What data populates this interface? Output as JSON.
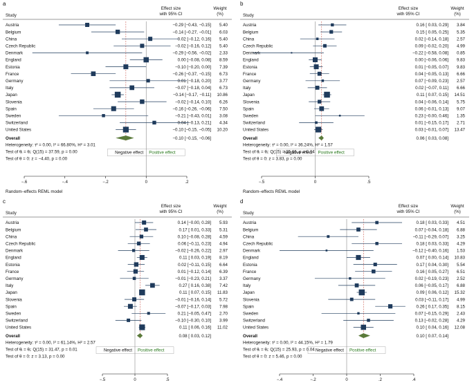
{
  "colors": {
    "marker": "#1f3b5c",
    "overall": "#5a7a3a",
    "positive_text": "#2a7a1e",
    "ci_line": "#1f3b5c"
  },
  "chart_data": [
    {
      "type": "forest",
      "panel_label": "a",
      "header": {
        "study": "Study",
        "effect_l1": "Effect size",
        "effect_l2": "with 95% CI",
        "weight_l1": "Weight",
        "weight_l2": "(%)"
      },
      "studies": [
        {
          "name": "Austria",
          "es": -0.29,
          "lo": -0.43,
          "hi": -0.15,
          "ci_text": "−0.29 [−0.43, −0.15]",
          "weight": "5.40"
        },
        {
          "name": "Belgium",
          "es": -0.14,
          "lo": -0.27,
          "hi": -0.01,
          "ci_text": "−0.14 [−0.27, −0.01]",
          "weight": "6.03"
        },
        {
          "name": "China",
          "es": 0.02,
          "lo": -0.12,
          "hi": 0.16,
          "ci_text": "0.02 [−0.12, 0.16]",
          "weight": "5.40"
        },
        {
          "name": "Czech Republic",
          "es": -0.02,
          "lo": -0.16,
          "hi": 0.12,
          "ci_text": "−0.02 [−0.16, 0.12]",
          "weight": "5.40"
        },
        {
          "name": "Denmark",
          "es": -0.29,
          "lo": -0.56,
          "hi": -0.02,
          "ci_text": "−0.29 [−0.56, −0.02]",
          "weight": "2.33"
        },
        {
          "name": "England",
          "es": 0.0,
          "lo": -0.08,
          "hi": 0.08,
          "ci_text": "0.00 [−0.08, 0.08]",
          "weight": "8.59"
        },
        {
          "name": "Estonia",
          "es": -0.1,
          "lo": -0.2,
          "hi": 0.0,
          "ci_text": "−0.10 [−0.20, 0.00]",
          "weight": "7.39"
        },
        {
          "name": "France",
          "es": -0.26,
          "lo": -0.37,
          "hi": -0.15,
          "ci_text": "−0.26 [−0.37, −0.15]",
          "weight": "6.73"
        },
        {
          "name": "Germany",
          "es": 0.01,
          "lo": -0.18,
          "hi": 0.2,
          "ci_text": "0.01 [−0.18, 0.20]",
          "weight": "3.77"
        },
        {
          "name": "Italy",
          "es": -0.07,
          "lo": -0.18,
          "hi": 0.04,
          "ci_text": "−0.07 [−0.18, 0.04]",
          "weight": "6.73"
        },
        {
          "name": "Japan",
          "es": -0.14,
          "lo": -0.17,
          "hi": -0.11,
          "ci_text": "−0.14 [−0.17, −0.11]",
          "weight": "10.86"
        },
        {
          "name": "Slovenia",
          "es": -0.02,
          "lo": -0.14,
          "hi": 0.1,
          "ci_text": "−0.02 [−0.14, 0.10]",
          "weight": "6.26"
        },
        {
          "name": "Spain",
          "es": -0.16,
          "lo": -0.26,
          "hi": -0.06,
          "ci_text": "−0.16 [−0.26, −0.06]",
          "weight": "7.50"
        },
        {
          "name": "Sweden",
          "es": -0.21,
          "lo": -0.43,
          "hi": 0.01,
          "ci_text": "−0.21 [−0.43, 0.01]",
          "weight": "3.08"
        },
        {
          "name": "Switzerland",
          "es": 0.04,
          "lo": -0.13,
          "hi": 0.21,
          "ci_text": "0.04 [−0.13, 0.21]",
          "weight": "4.34"
        },
        {
          "name": "United States",
          "es": -0.1,
          "lo": -0.15,
          "hi": -0.05,
          "ci_text": "−0.10 [−0.15, −0.05]",
          "weight": "10.20"
        }
      ],
      "overall": {
        "label": "Overall",
        "es": -0.1,
        "lo": -0.15,
        "hi": -0.06,
        "ci_text": "−0.10 [−0.15, −0.06]"
      },
      "notes": [
        "Heterogeneity: τ² = 0.00, I² = 66.80%, H² = 3.01",
        "Test of θᵢ = θⱼ: Q(15) = 37.59, p = 0.00",
        "Test of θ = 0: z = −4.40, p = 0.00"
      ],
      "negative_label": "Negative effect",
      "positive_label": "Positive effect",
      "model_label": "Random–effects REML model",
      "xlim": [
        -0.6,
        0.2
      ],
      "ticks": [
        {
          "v": -0.6,
          "t": "−.6"
        },
        {
          "v": -0.4,
          "t": "−.4"
        },
        {
          "v": -0.2,
          "t": "−.2"
        },
        {
          "v": 0,
          "t": "0"
        },
        {
          "v": 0.2,
          "t": ".2"
        }
      ]
    },
    {
      "type": "forest",
      "panel_label": "b",
      "header": {
        "study": "Study",
        "effect_l1": "Effect size",
        "effect_l2": "with 95% CI",
        "weight_l1": "Weight",
        "weight_l2": "(%)"
      },
      "studies": [
        {
          "name": "Austria",
          "es": 0.16,
          "lo": 0.03,
          "hi": 0.29,
          "ci_text": "0.16 [ 0.03, 0.29]",
          "weight": "3.84"
        },
        {
          "name": "Belgium",
          "es": 0.15,
          "lo": 0.05,
          "hi": 0.25,
          "ci_text": "0.15 [ 0.05, 0.25]",
          "weight": "5.35"
        },
        {
          "name": "China",
          "es": 0.02,
          "lo": -0.14,
          "hi": 0.18,
          "ci_text": "0.02 [−0.14, 0.18]",
          "weight": "2.57"
        },
        {
          "name": "Czech Republic",
          "es": 0.09,
          "lo": -0.02,
          "hi": 0.2,
          "ci_text": "0.09 [−0.02, 0.20]",
          "weight": "4.99"
        },
        {
          "name": "Denmark",
          "es": -0.22,
          "lo": -0.58,
          "hi": 0.08,
          "ci_text": "−0.22 [−0.58, 0.08]",
          "weight": "0.85"
        },
        {
          "name": "England",
          "es": 0.0,
          "lo": -0.06,
          "hi": 0.06,
          "ci_text": "0.00 [−0.06, 0.06]",
          "weight": "9.83"
        },
        {
          "name": "Estonia",
          "es": 0.01,
          "lo": -0.05,
          "hi": 0.07,
          "ci_text": "0.01 [−0.05, 0.07]",
          "weight": "9.83"
        },
        {
          "name": "France",
          "es": 0.04,
          "lo": -0.05,
          "hi": 0.13,
          "ci_text": "0.04 [−0.05, 0.13]",
          "weight": "6.66"
        },
        {
          "name": "Germany",
          "es": 0.07,
          "lo": -0.09,
          "hi": 0.23,
          "ci_text": "0.07 [−0.09, 0.23]",
          "weight": "2.57"
        },
        {
          "name": "Italy",
          "es": 0.02,
          "lo": -0.07,
          "hi": 0.11,
          "ci_text": "0.02 [−0.07, 0.11]",
          "weight": "6.66"
        },
        {
          "name": "Japan",
          "es": 0.11,
          "lo": 0.07,
          "hi": 0.15,
          "ci_text": "0.11 [ 0.07, 0.15]",
          "weight": "14.51"
        },
        {
          "name": "Slovenia",
          "es": 0.04,
          "lo": -0.06,
          "hi": 0.14,
          "ci_text": "0.04 [−0.06, 0.14]",
          "weight": "5.75"
        },
        {
          "name": "Spain",
          "es": 0.06,
          "lo": -0.01,
          "hi": 0.13,
          "ci_text": "0.06 [−0.01, 0.13]",
          "weight": "9.07"
        },
        {
          "name": "Sweden",
          "es": 0.23,
          "lo": 0.0,
          "hi": 0.46,
          "ci_text": "0.23 [−0.00, 0.46]",
          "weight": "1.35"
        },
        {
          "name": "Switzerland",
          "es": 0.01,
          "lo": -0.15,
          "hi": 0.17,
          "ci_text": "0.01 [−0.15, 0.17]",
          "weight": "2.71"
        },
        {
          "name": "United States",
          "es": 0.03,
          "lo": -0.01,
          "hi": 0.07,
          "ci_text": "0.03 [−0.01, 0.07]",
          "weight": "13.47"
        }
      ],
      "overall": {
        "label": "Overall",
        "es": 0.06,
        "lo": 0.03,
        "hi": 0.08,
        "ci_text": "0.06 [ 0.03, 0.08]"
      },
      "notes": [
        "Heterogeneity: τ² = 0.00, I² = 36.24%, H² = 1.57",
        "Test of θᵢ = θⱼ: Q(15) = 25.66, p = 0.04",
        "Test of θ = 0: z = 3.83, p = 0.00"
      ],
      "negative_label": "Negative effect",
      "positive_label": "Positive effect",
      "model_label": "Random–effects REML model",
      "xlim": [
        -0.5,
        0.5
      ],
      "ticks": [
        {
          "v": -0.5,
          "t": "−.5"
        },
        {
          "v": 0,
          "t": "0"
        },
        {
          "v": 0.5,
          "t": ".5"
        }
      ]
    },
    {
      "type": "forest",
      "panel_label": "c",
      "header": {
        "study": "Study",
        "effect_l1": "Effect size",
        "effect_l2": "with 95% CI",
        "weight_l1": "Weight",
        "weight_l2": "(%)"
      },
      "studies": [
        {
          "name": "Austria",
          "es": 0.14,
          "lo": 0.0,
          "hi": 0.28,
          "ci_text": "0.14 [−0.00, 0.28]",
          "weight": "5.93"
        },
        {
          "name": "Belgium",
          "es": 0.17,
          "lo": 0.01,
          "hi": 0.33,
          "ci_text": "0.17 [ 0.01, 0.33]",
          "weight": "5.31"
        },
        {
          "name": "China",
          "es": 0.1,
          "lo": -0.08,
          "hi": 0.28,
          "ci_text": "0.10 [−0.08, 0.28]",
          "weight": "4.59"
        },
        {
          "name": "Czech Republic",
          "es": 0.06,
          "lo": -0.11,
          "hi": 0.23,
          "ci_text": "0.06 [−0.11, 0.23]",
          "weight": "4.94"
        },
        {
          "name": "Denmark",
          "es": -0.02,
          "lo": -0.26,
          "hi": 0.22,
          "ci_text": "−0.02 [−0.26, 0.22]",
          "weight": "2.97"
        },
        {
          "name": "England",
          "es": 0.11,
          "lo": 0.03,
          "hi": 0.19,
          "ci_text": "0.11 [ 0.03, 0.19]",
          "weight": "8.19"
        },
        {
          "name": "Estonia",
          "es": 0.02,
          "lo": -0.11,
          "hi": 0.15,
          "ci_text": "0.02 [−0.11, 0.15]",
          "weight": "6.64"
        },
        {
          "name": "France",
          "es": 0.01,
          "lo": -0.12,
          "hi": 0.14,
          "ci_text": "0.01 [−0.12, 0.14]",
          "weight": "6.39"
        },
        {
          "name": "Germany",
          "es": -0.01,
          "lo": -0.23,
          "hi": 0.21,
          "ci_text": "−0.01 [−0.23, 0.21]",
          "weight": "3.37"
        },
        {
          "name": "Italy",
          "es": 0.27,
          "lo": 0.16,
          "hi": 0.38,
          "ci_text": "0.27 [ 0.16, 0.38]",
          "weight": "7.42"
        },
        {
          "name": "Japan",
          "es": 0.11,
          "lo": 0.07,
          "hi": 0.15,
          "ci_text": "0.11 [ 0.07, 0.15]",
          "weight": "11.83"
        },
        {
          "name": "Slovenia",
          "es": -0.01,
          "lo": -0.16,
          "hi": 0.14,
          "ci_text": "−0.01 [−0.16, 0.14]",
          "weight": "5.72"
        },
        {
          "name": "Spain",
          "es": -0.07,
          "lo": -0.17,
          "hi": 0.03,
          "ci_text": "−0.07 [−0.17, 0.03]",
          "weight": "7.98"
        },
        {
          "name": "Sweden",
          "es": 0.21,
          "lo": -0.05,
          "hi": 0.47,
          "ci_text": "0.21 [−0.05, 0.47]",
          "weight": "2.70"
        },
        {
          "name": "Switzerland",
          "es": -0.1,
          "lo": -0.3,
          "hi": 0.1,
          "ci_text": "−0.10 [−0.30, 0.10]",
          "weight": "3.99"
        },
        {
          "name": "United States",
          "es": 0.11,
          "lo": 0.06,
          "hi": 0.16,
          "ci_text": "0.11 [ 0.06, 0.16]",
          "weight": "11.02"
        }
      ],
      "overall": {
        "label": "Overall",
        "es": 0.08,
        "lo": 0.03,
        "hi": 0.12,
        "ci_text": "0.08 [ 0.03, 0.12]"
      },
      "notes": [
        "Heterogeneity: τ² = 0.00, I² = 61.14%, H² = 2.57",
        "Test of θᵢ = θⱼ: Q(15) = 31.47, p = 0.01",
        "Test of θ = 0: z = 3.13, p = 0.00"
      ],
      "negative_label": "Negative effect",
      "positive_label": "Positive effect",
      "model_label": "Random–effects REML model",
      "xlim": [
        -0.5,
        0.5
      ],
      "ticks": [
        {
          "v": -0.5,
          "t": "−.5"
        },
        {
          "v": 0,
          "t": "0"
        },
        {
          "v": 0.5,
          "t": ".5"
        }
      ]
    },
    {
      "type": "forest",
      "panel_label": "d",
      "header": {
        "study": "Study",
        "effect_l1": "Effect size",
        "effect_l2": "with 95% CI",
        "weight_l1": "Weight",
        "weight_l2": "(%)"
      },
      "studies": [
        {
          "name": "Austria",
          "es": 0.18,
          "lo": 0.03,
          "hi": 0.33,
          "ci_text": "0.18 [ 0.03, 0.33]",
          "weight": "4.51"
        },
        {
          "name": "Belgium",
          "es": 0.07,
          "lo": -0.04,
          "hi": 0.18,
          "ci_text": "0.07 [−0.04, 0.18]",
          "weight": "6.88"
        },
        {
          "name": "China",
          "es": -0.11,
          "lo": -0.29,
          "hi": 0.07,
          "ci_text": "−0.11 [−0.29, 0.07]",
          "weight": "3.25"
        },
        {
          "name": "Czech Republic",
          "es": 0.18,
          "lo": 0.03,
          "hi": 0.33,
          "ci_text": "0.18 [ 0.03, 0.33]",
          "weight": "4.29"
        },
        {
          "name": "Denmark",
          "es": -0.12,
          "lo": -0.4,
          "hi": 0.16,
          "ci_text": "−0.12 [−0.40, 0.16]",
          "weight": "1.53"
        },
        {
          "name": "England",
          "es": 0.07,
          "lo": 0.0,
          "hi": 0.14,
          "ci_text": "0.07 [ 0.00, 0.14]",
          "weight": "10.83"
        },
        {
          "name": "Estonia",
          "es": 0.17,
          "lo": 0.04,
          "hi": 0.3,
          "ci_text": "0.17 [ 0.04, 0.30]",
          "weight": "5.54"
        },
        {
          "name": "France",
          "es": 0.16,
          "lo": 0.05,
          "hi": 0.27,
          "ci_text": "0.16 [ 0.05, 0.27]",
          "weight": "6.51"
        },
        {
          "name": "Germany",
          "es": 0.02,
          "lo": -0.19,
          "hi": 0.23,
          "ci_text": "0.02 [−0.19, 0.23]",
          "weight": "2.52"
        },
        {
          "name": "Italy",
          "es": 0.06,
          "lo": -0.05,
          "hi": 0.17,
          "ci_text": "0.06 [−0.05, 0.17]",
          "weight": "6.88"
        },
        {
          "name": "Japan",
          "es": 0.09,
          "lo": 0.06,
          "hi": 0.12,
          "ci_text": "0.09 [ 0.06, 0.12]",
          "weight": "15.32"
        },
        {
          "name": "Slovenia",
          "es": 0.03,
          "lo": -0.11,
          "hi": 0.17,
          "ci_text": "0.03 [−0.11, 0.17]",
          "weight": "4.99"
        },
        {
          "name": "Spain",
          "es": 0.26,
          "lo": 0.17,
          "hi": 0.35,
          "ci_text": "0.26 [ 0.17, 0.35]",
          "weight": "8.15"
        },
        {
          "name": "Sweden",
          "es": 0.07,
          "lo": -0.15,
          "hi": 0.29,
          "ci_text": "0.07 [−0.15, 0.29]",
          "weight": "2.43"
        },
        {
          "name": "Switzerland",
          "es": 0.13,
          "lo": -0.02,
          "hi": 0.28,
          "ci_text": "0.13 [−0.02, 0.28]",
          "weight": "4.29"
        },
        {
          "name": "United States",
          "es": 0.1,
          "lo": 0.04,
          "hi": 0.16,
          "ci_text": "0.10 [ 0.04, 0.16]",
          "weight": "12.08"
        }
      ],
      "overall": {
        "label": "Overall",
        "es": 0.1,
        "lo": 0.07,
        "hi": 0.14,
        "ci_text": "0.10 [ 0.07, 0.14]"
      },
      "notes": [
        "Heterogeneity: τ² = 0.00, I² = 44.15%, H² = 1.79",
        "Test of θᵢ = θⱼ: Q(15) = 25.93, p = 0.04",
        "Test of θ = 0: z = 5.46, p = 0.00"
      ],
      "negative_label": "Negative effect",
      "positive_label": "Positive effect",
      "model_label": "Random–effects REML model",
      "xlim": [
        -0.4,
        0.4
      ],
      "ticks": [
        {
          "v": -0.4,
          "t": "−.4"
        },
        {
          "v": -0.2,
          "t": "−.2"
        },
        {
          "v": 0,
          "t": "0"
        },
        {
          "v": 0.2,
          "t": ".2"
        },
        {
          "v": 0.4,
          "t": ".4"
        }
      ]
    }
  ]
}
